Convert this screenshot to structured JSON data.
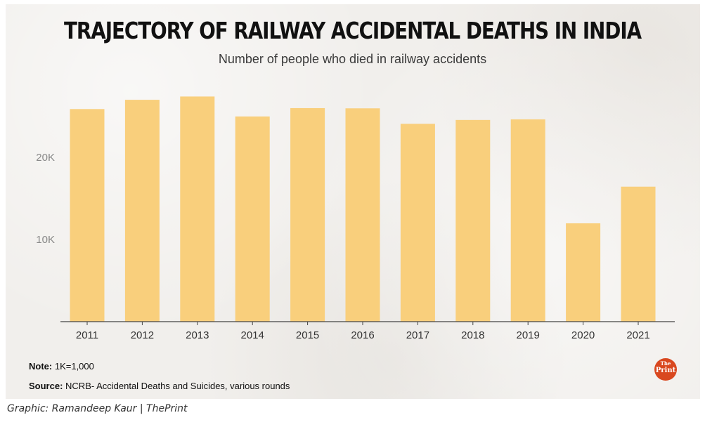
{
  "header": {
    "title": "TRAJECTORY OF RAILWAY ACCIDENTAL DEATHS IN INDIA",
    "subtitle": "Number of people who died in railway accidents"
  },
  "footer": {
    "note_label": "Note:",
    "note_text": "1K=1,000",
    "source_label": "Source:",
    "source_text": "NCRB- Accidental Deaths and Suicides, various rounds",
    "logo_top": "The",
    "logo_bottom": "Print",
    "credit": "Graphic: Ramandeep Kaur | ThePrint"
  },
  "colors": {
    "bar": "#f9cf7c",
    "axis": "#444444",
    "tick_text": "#888888",
    "category_text": "#333333",
    "background": "#f1efec",
    "logo": "#d9481f"
  },
  "chart_data": {
    "type": "bar",
    "title": "TRAJECTORY OF RAILWAY ACCIDENTAL DEATHS IN INDIA",
    "subtitle": "Number of people who died in railway accidents",
    "xlabel": "",
    "ylabel": "",
    "categories": [
      "2011",
      "2012",
      "2013",
      "2014",
      "2015",
      "2016",
      "2017",
      "2018",
      "2019",
      "2020",
      "2021"
    ],
    "values": [
      25872,
      27000,
      27400,
      24974,
      25987,
      25961,
      24078,
      24545,
      24619,
      11968,
      16431
    ],
    "ylim": [
      0,
      30000
    ],
    "yticks": [
      10000,
      20000
    ],
    "ytick_labels": [
      "10K",
      "20K"
    ],
    "grid": false,
    "legend": "none"
  }
}
